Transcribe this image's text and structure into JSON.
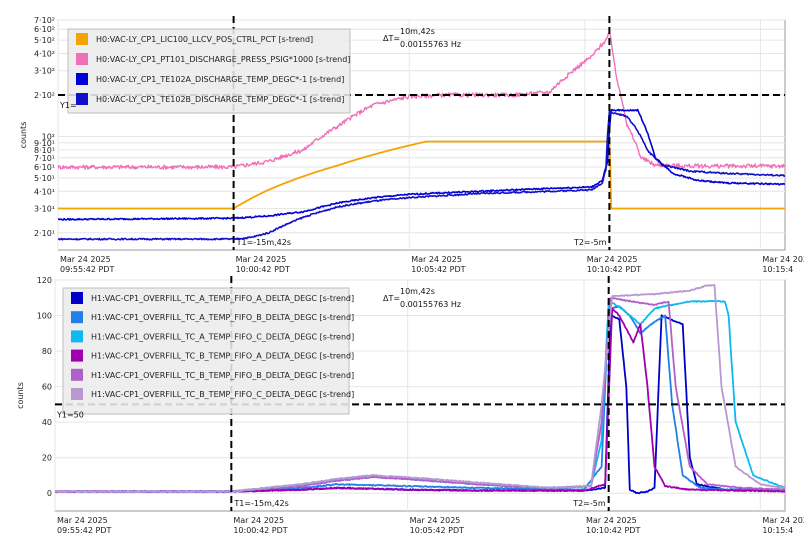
{
  "chart_data": [
    {
      "type": "line",
      "ylabel": "counts",
      "yscale": "log",
      "ylim": [
        15,
        700
      ],
      "ytick_labels": [
        {
          "v": 700,
          "t": "7·10²"
        },
        {
          "v": 600,
          "t": "6·10²"
        },
        {
          "v": 500,
          "t": "5·10²"
        },
        {
          "v": 400,
          "t": "4·10²"
        },
        {
          "v": 300,
          "t": "3·10²"
        },
        {
          "v": 200,
          "t": "2·10²"
        },
        {
          "v": 100,
          "t": "10²"
        },
        {
          "v": 90,
          "t": "9·10¹"
        },
        {
          "v": 80,
          "t": "8·10¹"
        },
        {
          "v": 70,
          "t": "7·10¹"
        },
        {
          "v": 60,
          "t": "6·10¹"
        },
        {
          "v": 50,
          "t": "5·10¹"
        },
        {
          "v": 40,
          "t": "4·10¹"
        },
        {
          "v": 30,
          "t": "3·10¹"
        },
        {
          "v": 20,
          "t": "2·10¹"
        }
      ],
      "x_ticks": [
        {
          "v": 0,
          "date": "Mar 24 2025",
          "time": "09:55:42 PDT"
        },
        {
          "v": 5,
          "date": "Mar 24 2025",
          "time": "10:00:42 PDT"
        },
        {
          "v": 10,
          "date": "Mar 24 2025",
          "time": "10:05:42 PDT"
        },
        {
          "v": 15,
          "date": "Mar 24 2025",
          "time": "10:10:42 PDT"
        },
        {
          "v": 20,
          "date": "Mar 24 2025",
          "time": "10:15:4"
        }
      ],
      "xlim": [
        0,
        20.7
      ],
      "cursor_y": {
        "label": "Y1=",
        "value": 200
      },
      "t1": {
        "x": 5,
        "label": "T1=-15m,42s"
      },
      "t2": {
        "x": 15.7,
        "label": "T2=-5m"
      },
      "delta": {
        "label": "ΔT=",
        "line1": "10m,42s",
        "line2": "0.00155763 Hz"
      },
      "legend_position": "top-left",
      "series": [
        {
          "name": "H0:VAC-LY_CP1_LIC100_LLCV_POS_CTRL_PCT [s-trend]",
          "color": "#F5A300",
          "width": 1.8,
          "noise": 0,
          "points": [
            [
              0,
              30
            ],
            [
              5,
              30
            ],
            [
              6,
              41
            ],
            [
              8,
              62
            ],
            [
              10,
              86
            ],
            [
              10.5,
              92
            ],
            [
              15.7,
              92
            ],
            [
              15.75,
              30
            ],
            [
              20.7,
              30
            ]
          ]
        },
        {
          "name": "H0:VAC-LY_CP1_PT101_DISCHARGE_PRESS_PSIG*1000 [s-trend]",
          "color": "#F070B8",
          "width": 1.4,
          "noise": 0.035,
          "points": [
            [
              0,
              60
            ],
            [
              5,
              60
            ],
            [
              6,
              66
            ],
            [
              7,
              80
            ],
            [
              8,
              120
            ],
            [
              9,
              170
            ],
            [
              10,
              195
            ],
            [
              11,
              200
            ],
            [
              13,
              200
            ],
            [
              14,
              210
            ],
            [
              14.6,
              290
            ],
            [
              15.2,
              380
            ],
            [
              15.6,
              500
            ],
            [
              15.7,
              560
            ],
            [
              15.9,
              260
            ],
            [
              16.2,
              120
            ],
            [
              16.6,
              70
            ],
            [
              17,
              62
            ],
            [
              18,
              61
            ],
            [
              20.7,
              61
            ]
          ]
        },
        {
          "name": "H0:VAC-LY_CP1_TE102A_DISCHARGE_TEMP_DEGC*-1 [s-trend]",
          "color": "#0000D8",
          "width": 1.6,
          "noise": 0.012,
          "points": [
            [
              0,
              25
            ],
            [
              5,
              25.5
            ],
            [
              6,
              26.5
            ],
            [
              7,
              28.5
            ],
            [
              8,
              33
            ],
            [
              9,
              36
            ],
            [
              10,
              38
            ],
            [
              12,
              40
            ],
            [
              14,
              42
            ],
            [
              15.2,
              43
            ],
            [
              15.5,
              48
            ],
            [
              15.65,
              65
            ],
            [
              15.75,
              155
            ],
            [
              16.5,
              155
            ],
            [
              16.7,
              120
            ],
            [
              17,
              70
            ],
            [
              17.5,
              54
            ],
            [
              18.2,
              48
            ],
            [
              19,
              46
            ],
            [
              20.7,
              45
            ]
          ]
        },
        {
          "name": "H0:VAC-LY_CP1_TE102B_DISCHARGE_TEMP_DEGC*-1 [s-trend]",
          "color": "#1010C8",
          "width": 1.6,
          "noise": 0.012,
          "points": [
            [
              0,
              18
            ],
            [
              5,
              18
            ],
            [
              5.5,
              18.5
            ],
            [
              6,
              20
            ],
            [
              7,
              26
            ],
            [
              8,
              31
            ],
            [
              9,
              34
            ],
            [
              10,
              36
            ],
            [
              12,
              38.5
            ],
            [
              14,
              40
            ],
            [
              15.2,
              41
            ],
            [
              15.5,
              46
            ],
            [
              15.6,
              58
            ],
            [
              15.7,
              150
            ],
            [
              16.2,
              140
            ],
            [
              16.5,
              110
            ],
            [
              16.8,
              78
            ],
            [
              17.2,
              62
            ],
            [
              18,
              56
            ],
            [
              19,
              54
            ],
            [
              20.7,
              52
            ]
          ]
        }
      ]
    },
    {
      "type": "line",
      "ylabel": "counts",
      "ylim": [
        -10,
        120
      ],
      "y_ticks": [
        0,
        20,
        40,
        60,
        80,
        100,
        120
      ],
      "x_ticks": [
        {
          "v": 0,
          "date": "Mar 24 2025",
          "time": "09:55:42 PDT"
        },
        {
          "v": 5,
          "date": "Mar 24 2025",
          "time": "10:00:42 PDT"
        },
        {
          "v": 10,
          "date": "Mar 24 2025",
          "time": "10:05:42 PDT"
        },
        {
          "v": 15,
          "date": "Mar 24 2025",
          "time": "10:10:42 PDT"
        },
        {
          "v": 20,
          "date": "Mar 24 2025",
          "time": "10:15:4"
        }
      ],
      "xlim": [
        0,
        20.7
      ],
      "cursor_y": {
        "label": "Y1=50",
        "value": 50
      },
      "t1": {
        "x": 5,
        "label": "T1=-15m,42s"
      },
      "t2": {
        "x": 15.7,
        "label": "T2=-5m"
      },
      "delta": {
        "label": "ΔT=",
        "line1": "10m,42s",
        "line2": "0.00155763 Hz"
      },
      "legend_position": "top-left",
      "series": [
        {
          "name": "H1:VAC-CP1_OVERFILL_TC_A_TEMP_FIFO_A_DELTA_DEGC [s-trend]",
          "color": "#0000C8",
          "width": 1.8,
          "noise": 0.3,
          "points": [
            [
              0,
              1
            ],
            [
              5,
              1
            ],
            [
              7,
              2
            ],
            [
              8,
              3
            ],
            [
              10,
              2
            ],
            [
              12,
              1.5
            ],
            [
              15,
              1.5
            ],
            [
              15.6,
              3
            ],
            [
              15.75,
              100
            ],
            [
              16,
              98
            ],
            [
              16.2,
              60
            ],
            [
              16.3,
              2
            ],
            [
              16.5,
              0
            ],
            [
              16.8,
              1
            ],
            [
              17,
              3
            ],
            [
              17.2,
              100
            ],
            [
              17.8,
              95
            ],
            [
              18,
              20
            ],
            [
              18.2,
              5
            ],
            [
              19,
              2
            ],
            [
              20.7,
              2
            ]
          ]
        },
        {
          "name": "H1:VAC-CP1_OVERFILL_TC_A_TEMP_FIFO_B_DELTA_DEGC [s-trend]",
          "color": "#2080E8",
          "width": 1.8,
          "noise": 0.3,
          "points": [
            [
              0,
              1
            ],
            [
              5,
              1
            ],
            [
              7,
              3
            ],
            [
              8,
              5
            ],
            [
              10,
              4
            ],
            [
              12,
              3
            ],
            [
              15,
              2
            ],
            [
              15.5,
              15
            ],
            [
              15.7,
              104
            ],
            [
              16,
              105
            ],
            [
              16.3,
              100
            ],
            [
              16.6,
              90
            ],
            [
              16.9,
              95
            ],
            [
              17.3,
              100
            ],
            [
              17.5,
              50
            ],
            [
              17.8,
              10
            ],
            [
              18.3,
              3
            ],
            [
              19,
              2
            ],
            [
              20.7,
              2
            ]
          ]
        },
        {
          "name": "H1:VAC-CP1_OVERFILL_TC_A_TEMP_FIFO_C_DELTA_DEGC [s-trend]",
          "color": "#10B8F0",
          "width": 1.8,
          "noise": 0.3,
          "points": [
            [
              0,
              1
            ],
            [
              5,
              1
            ],
            [
              7,
              5
            ],
            [
              8,
              8
            ],
            [
              9,
              10
            ],
            [
              10,
              8
            ],
            [
              12,
              5
            ],
            [
              14,
              3
            ],
            [
              15.2,
              4
            ],
            [
              15.5,
              30
            ],
            [
              15.7,
              108
            ],
            [
              16,
              105
            ],
            [
              16.6,
              95
            ],
            [
              17,
              104
            ],
            [
              18,
              108
            ],
            [
              19,
              108
            ],
            [
              19.1,
              100
            ],
            [
              19.3,
              40
            ],
            [
              19.8,
              10
            ],
            [
              20.7,
              3
            ]
          ]
        },
        {
          "name": "H1:VAC-CP1_OVERFILL_TC_B_TEMP_FIFO_A_DELTA_DEGC [s-trend]",
          "color": "#A000B0",
          "width": 1.8,
          "noise": 0.3,
          "points": [
            [
              0,
              1
            ],
            [
              5,
              1
            ],
            [
              7,
              2
            ],
            [
              8,
              3
            ],
            [
              10,
              2
            ],
            [
              12,
              1.5
            ],
            [
              15,
              1.5
            ],
            [
              15.6,
              5
            ],
            [
              15.8,
              104
            ],
            [
              16,
              100
            ],
            [
              16.4,
              85
            ],
            [
              16.6,
              95
            ],
            [
              16.8,
              60
            ],
            [
              17,
              15
            ],
            [
              17.3,
              4
            ],
            [
              18,
              2
            ],
            [
              20.7,
              1
            ]
          ]
        },
        {
          "name": "H1:VAC-CP1_OVERFILL_TC_B_TEMP_FIFO_B_DELTA_DEGC [s-trend]",
          "color": "#B060C8",
          "width": 1.8,
          "noise": 0.3,
          "points": [
            [
              0,
              1
            ],
            [
              5,
              1
            ],
            [
              7,
              4
            ],
            [
              8,
              7
            ],
            [
              9,
              9
            ],
            [
              10,
              8
            ],
            [
              12,
              5
            ],
            [
              14,
              3
            ],
            [
              15.2,
              4
            ],
            [
              15.5,
              40
            ],
            [
              15.75,
              110
            ],
            [
              16,
              109
            ],
            [
              17,
              106
            ],
            [
              17.4,
              108
            ],
            [
              17.6,
              60
            ],
            [
              18,
              15
            ],
            [
              18.5,
              5
            ],
            [
              19.5,
              3
            ],
            [
              20.7,
              2
            ]
          ]
        },
        {
          "name": "H1:VAC-CP1_OVERFILL_TC_B_TEMP_FIFO_C_DELTA_DEGC [s-trend]",
          "color": "#B898D0",
          "width": 1.8,
          "noise": 0.3,
          "points": [
            [
              0,
              1
            ],
            [
              5,
              1
            ],
            [
              7,
              5
            ],
            [
              8,
              8
            ],
            [
              9,
              10
            ],
            [
              10,
              9
            ],
            [
              12,
              6
            ],
            [
              14,
              3
            ],
            [
              15.2,
              4
            ],
            [
              15.5,
              50
            ],
            [
              15.8,
              111
            ],
            [
              17,
              112
            ],
            [
              18,
              114
            ],
            [
              18.5,
              117
            ],
            [
              18.7,
              117
            ],
            [
              18.9,
              60
            ],
            [
              19.3,
              15
            ],
            [
              20,
              5
            ],
            [
              20.7,
              3
            ]
          ]
        }
      ]
    }
  ]
}
